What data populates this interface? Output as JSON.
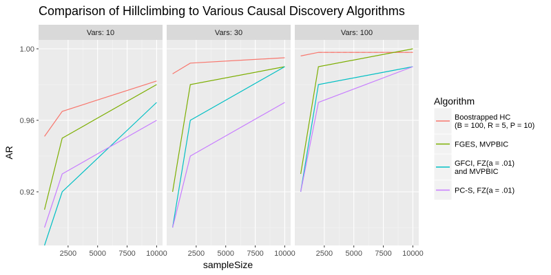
{
  "chart_data": {
    "type": "line",
    "title": "Comparison of Hillclimbing to Various Causal Discovery Algorithms",
    "xlabel": "sampleSize",
    "ylabel": "AR",
    "xlim": [
      0,
      10500
    ],
    "ylim": [
      0.89,
      1.005
    ],
    "x_ticks": [
      2500,
      5000,
      7500,
      10000
    ],
    "x_tick_labels": [
      "2500",
      "5000",
      "7500",
      "10000"
    ],
    "y_ticks": [
      0.92,
      0.96,
      1.0
    ],
    "y_tick_labels": [
      "0.92",
      "0.96",
      "1.00"
    ],
    "grid": true,
    "legend": {
      "title": "Algorithm",
      "position": "right",
      "entries": [
        {
          "key": "hc",
          "lines": [
            "Boostrapped HC",
            "(B = 100, R = 5, P = 10)"
          ],
          "color": "#F8766D"
        },
        {
          "key": "fges",
          "lines": [
            "FGES, MVPBIC"
          ],
          "color": "#7CAE00"
        },
        {
          "key": "gfci",
          "lines": [
            "GFCI, FZ(a = .01)",
            "and MVPBIC"
          ],
          "color": "#00BFC4"
        },
        {
          "key": "pcs",
          "lines": [
            "PC-S, FZ(a = .01)"
          ],
          "color": "#C77CFF"
        }
      ]
    },
    "panels": [
      {
        "label": "Vars: 10",
        "series": [
          {
            "key": "hc",
            "x": [
              500,
              2000,
              10000
            ],
            "y": [
              0.951,
              0.965,
              0.982
            ]
          },
          {
            "key": "fges",
            "x": [
              500,
              2000,
              10000
            ],
            "y": [
              0.91,
              0.95,
              0.98
            ]
          },
          {
            "key": "gfci",
            "x": [
              500,
              2000,
              10000
            ],
            "y": [
              0.89,
              0.92,
              0.97
            ]
          },
          {
            "key": "pcs",
            "x": [
              500,
              2000,
              10000
            ],
            "y": [
              0.9,
              0.93,
              0.96
            ]
          }
        ]
      },
      {
        "label": "Vars: 30",
        "series": [
          {
            "key": "hc",
            "x": [
              500,
              2000,
              10000
            ],
            "y": [
              0.986,
              0.992,
              0.995
            ]
          },
          {
            "key": "fges",
            "x": [
              500,
              2000,
              10000
            ],
            "y": [
              0.92,
              0.98,
              0.99
            ]
          },
          {
            "key": "gfci",
            "x": [
              500,
              2000,
              10000
            ],
            "y": [
              0.9,
              0.96,
              0.99
            ]
          },
          {
            "key": "pcs",
            "x": [
              500,
              2000,
              10000
            ],
            "y": [
              0.9,
              0.94,
              0.97
            ]
          }
        ]
      },
      {
        "label": "Vars: 100",
        "series": [
          {
            "key": "hc",
            "x": [
              500,
              2000,
              10000
            ],
            "y": [
              0.996,
              0.998,
              0.998
            ]
          },
          {
            "key": "hc",
            "x": [
              2000,
              10000
            ],
            "y": [
              0.998,
              0.998
            ],
            "dashed": true
          },
          {
            "key": "fges",
            "x": [
              500,
              2000,
              10000
            ],
            "y": [
              0.93,
              0.99,
              1.0
            ]
          },
          {
            "key": "gfci",
            "x": [
              500,
              2000,
              10000
            ],
            "y": [
              0.92,
              0.98,
              0.99
            ]
          },
          {
            "key": "pcs",
            "x": [
              500,
              2000,
              10000
            ],
            "y": [
              0.92,
              0.97,
              0.99
            ]
          }
        ]
      }
    ]
  }
}
